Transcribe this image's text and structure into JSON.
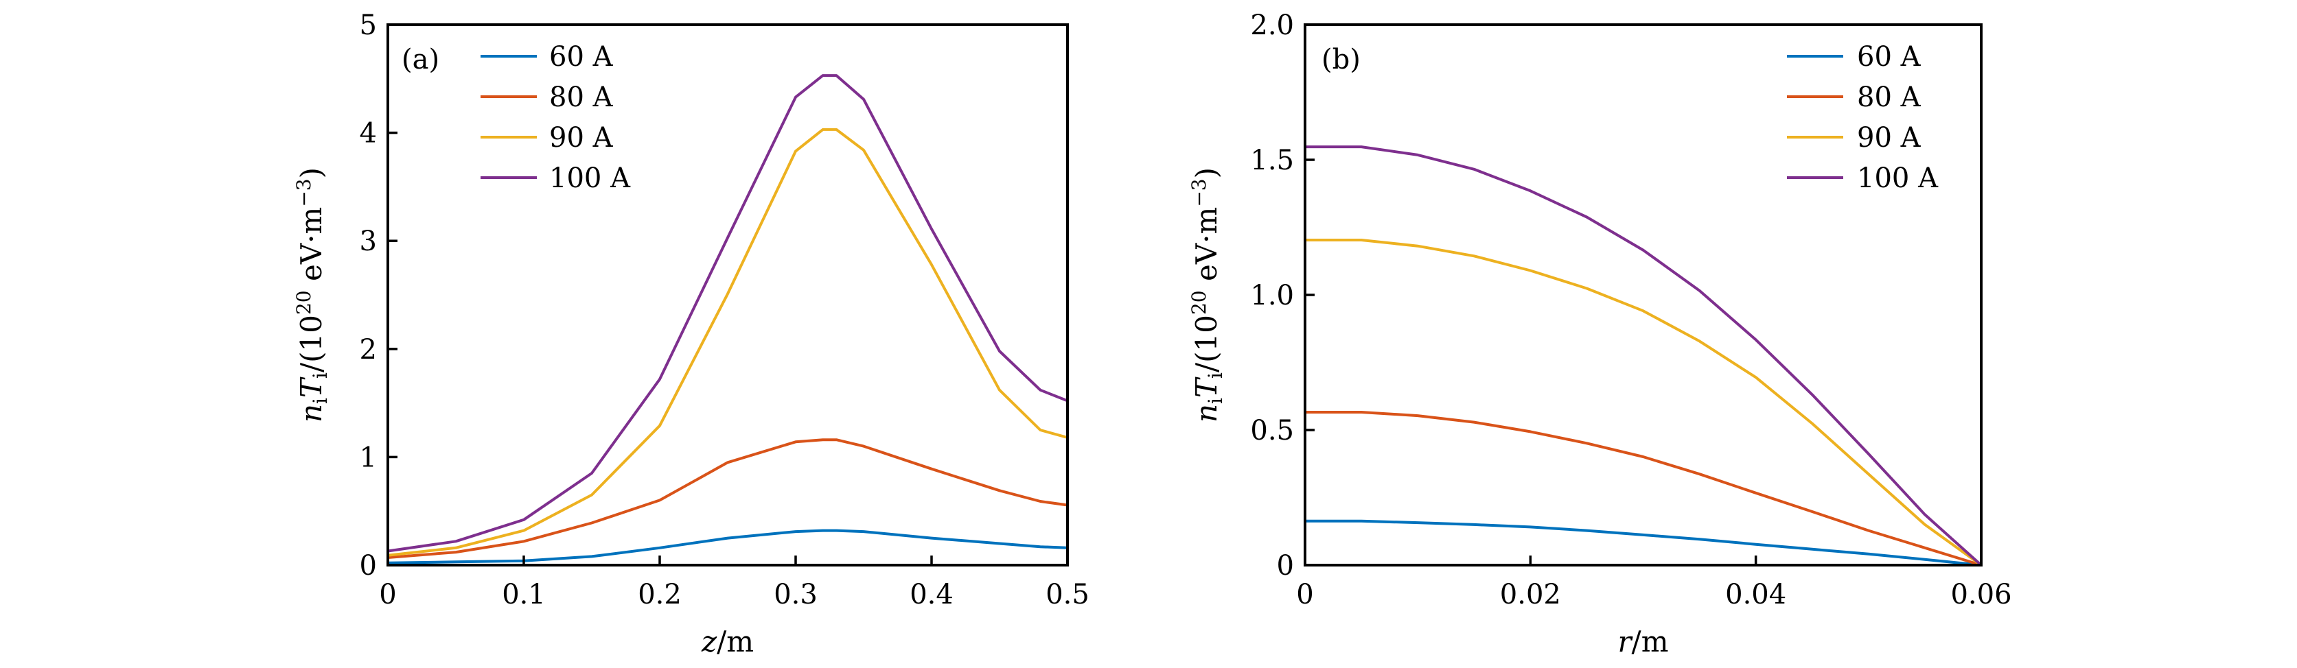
{
  "figure": {
    "panels": [
      "a",
      "b"
    ]
  },
  "chart_data": [
    {
      "type": "line",
      "panel_label": "(a)",
      "title": "",
      "xlabel": "z/m",
      "ylabel": "n_i T_i/(10^20 eV·m^-3)",
      "ylabel_parts": {
        "n": "n",
        "i1": "i",
        "T": "T",
        "i2": "i",
        "rest": "/(10",
        "exp": "20",
        "unit": " eV·m",
        "unit_exp": "−3",
        "close": ")"
      },
      "xlabel_parts": {
        "var": "z",
        "unit": "/m"
      },
      "xlim": [
        0,
        0.5
      ],
      "ylim": [
        0,
        5
      ],
      "xticks": [
        0,
        0.1,
        0.2,
        0.3,
        0.4,
        0.5
      ],
      "xtick_labels": [
        "0",
        "0.1",
        "0.2",
        "0.3",
        "0.4",
        "0.5"
      ],
      "yticks": [
        0,
        1,
        2,
        3,
        4,
        5
      ],
      "ytick_labels": [
        "0",
        "1",
        "2",
        "3",
        "4",
        "5"
      ],
      "grid": false,
      "legend_position": "top-left",
      "x": [
        0,
        0.05,
        0.1,
        0.15,
        0.2,
        0.25,
        0.3,
        0.32,
        0.33,
        0.35,
        0.4,
        0.45,
        0.48,
        0.5
      ],
      "series": [
        {
          "name": "60 A",
          "color": "#0072BD",
          "values": [
            0.02,
            0.03,
            0.04,
            0.08,
            0.16,
            0.25,
            0.31,
            0.32,
            0.32,
            0.31,
            0.25,
            0.2,
            0.17,
            0.16
          ]
        },
        {
          "name": "80 A",
          "color": "#D95319",
          "values": [
            0.07,
            0.12,
            0.22,
            0.39,
            0.6,
            0.95,
            1.14,
            1.16,
            1.16,
            1.1,
            0.89,
            0.69,
            0.59,
            0.555
          ]
        },
        {
          "name": "90 A",
          "color": "#EDB120",
          "values": [
            0.09,
            0.16,
            0.32,
            0.65,
            1.29,
            2.51,
            3.83,
            4.03,
            4.03,
            3.84,
            2.78,
            1.62,
            1.25,
            1.18
          ]
        },
        {
          "name": "100 A",
          "color": "#7E2F8E",
          "values": [
            0.13,
            0.22,
            0.42,
            0.85,
            1.72,
            3.03,
            4.33,
            4.53,
            4.53,
            4.31,
            3.11,
            1.98,
            1.62,
            1.52
          ]
        }
      ]
    },
    {
      "type": "line",
      "panel_label": "(b)",
      "title": "",
      "xlabel": "r/m",
      "ylabel": "n_i T_i/(10^20 eV·m^-3)",
      "ylabel_parts": {
        "n": "n",
        "i1": "i",
        "T": "T",
        "i2": "i",
        "rest": "/(10",
        "exp": "20",
        "unit": " eV·m",
        "unit_exp": "−3",
        "close": ")"
      },
      "xlabel_parts": {
        "var": "r",
        "unit": "/m"
      },
      "xlim": [
        0,
        0.06
      ],
      "ylim": [
        0,
        2.0
      ],
      "xticks": [
        0,
        0.02,
        0.04,
        0.06
      ],
      "xtick_labels": [
        "0",
        "0.02",
        "0.04",
        "0.06"
      ],
      "yticks": [
        0,
        0.5,
        1.0,
        1.5,
        2.0
      ],
      "ytick_labels": [
        "0",
        "0.5",
        "1.0",
        "1.5",
        "2.0"
      ],
      "grid": false,
      "legend_position": "top-right",
      "x": [
        0,
        0.005,
        0.01,
        0.015,
        0.02,
        0.025,
        0.03,
        0.035,
        0.04,
        0.045,
        0.05,
        0.055,
        0.06
      ],
      "series": [
        {
          "name": "60 A",
          "color": "#0072BD",
          "values": [
            0.163,
            0.163,
            0.157,
            0.15,
            0.141,
            0.128,
            0.112,
            0.096,
            0.077,
            0.059,
            0.041,
            0.021,
            0
          ]
        },
        {
          "name": "80 A",
          "color": "#D95319",
          "values": [
            0.566,
            0.566,
            0.553,
            0.529,
            0.494,
            0.451,
            0.401,
            0.337,
            0.267,
            0.198,
            0.128,
            0.064,
            0
          ]
        },
        {
          "name": "90 A",
          "color": "#EDB120",
          "values": [
            1.203,
            1.203,
            1.181,
            1.144,
            1.09,
            1.024,
            0.941,
            0.829,
            0.695,
            0.524,
            0.337,
            0.15,
            0
          ]
        },
        {
          "name": "100 A",
          "color": "#7E2F8E",
          "values": [
            1.548,
            1.548,
            1.518,
            1.465,
            1.385,
            1.288,
            1.166,
            1.016,
            0.834,
            0.631,
            0.412,
            0.187,
            0
          ]
        }
      ]
    }
  ]
}
